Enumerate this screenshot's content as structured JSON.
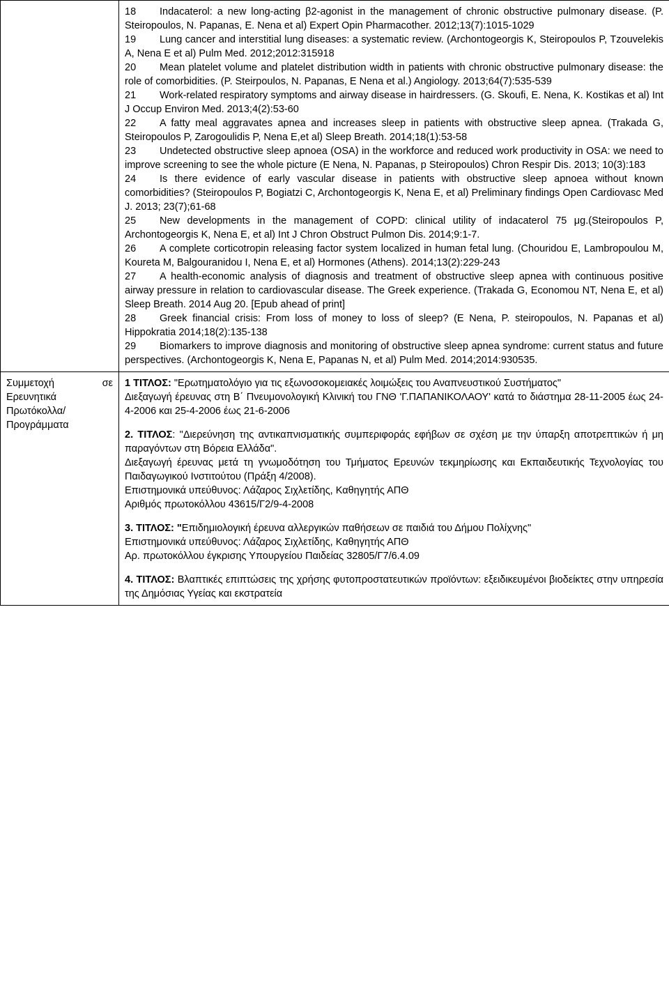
{
  "row1": {
    "left": "",
    "refs": [
      {
        "n": "18",
        "text": "Indacaterol: a new long-acting β2-agonist in the management of chronic obstructive pulmonary disease. (P. Steiropoulos, N. Papanas, E. Nena et al) Expert Opin Pharmacother. 2012;13(7):1015-1029"
      },
      {
        "n": "19",
        "text": "Lung cancer and interstitial lung diseases: a systematic review. (Archontogeorgis K, Steiropoulos P, Tzouvelekis A, Nena E et al) Pulm Med. 2012;2012:315918"
      },
      {
        "n": "20",
        "text": "Mean platelet volume and platelet distribution width in patients with chronic obstructive pulmonary disease: the role of comorbidities. (P. Steirpoulos, N. Papanas, E Nena et al.) Angiology. 2013;64(7):535-539"
      },
      {
        "n": "21",
        "text": "Work-related respiratory symptoms and airway disease in hairdressers. (G. Skoufi, E. Nena, K. Kostikas et al) Int J Occup Environ Med. 2013;4(2):53-60"
      },
      {
        "n": "22",
        "text": "A fatty meal aggravates apnea and increases sleep in patients with obstructive sleep apnea. (Trakada G, Steiropoulos P, Zarogoulidis P, Nena E,et al) Sleep Breath. 2014;18(1):53-58"
      },
      {
        "n": "23",
        "text": "Undetected obstructive sleep apnoea (OSA) in the workforce and reduced work productivity in OSA: we need to improve screening to see the whole picture (E Nena, N. Papanas, p Steiropoulos) Chron Respir Dis. 2013; 10(3):183"
      },
      {
        "n": "24",
        "text": "Is there evidence of early vascular disease in patients with obstructive sleep apnoea without known comorbidities? (Steiropoulos P, Bogiatzi C, Archontogeorgis K, Nena E, et al) Preliminary findings Open Cardiovasc Med J. 2013; 23(7);61-68"
      },
      {
        "n": "25",
        "text": "New developments in the management of COPD: clinical utility of indacaterol 75 μg.(Steiropoulos P, Archontogeorgis K, Nena E, et al)  Int J Chron Obstruct Pulmon Dis. 2014;9:1-7."
      },
      {
        "n": "26",
        "text": "A complete corticotropin releasing factor system localized in human fetal lung. (Chouridou E, Lambropoulou M, Koureta M, Balgouranidou I, Nena E, et al) Hormones (Athens). 2014;13(2):229-243"
      },
      {
        "n": "27",
        "text": "A health-economic analysis of diagnosis and treatment of obstructive sleep apnea with continuous positive airway pressure in relation to cardiovascular disease. The Greek experience. (Trakada G, Economou NT, Nena E, et al) Sleep Breath. 2014 Aug 20. [Epub ahead of print]"
      },
      {
        "n": "28",
        "text": "Greek financial crisis: From loss of money to loss of sleep? (E Nena, P. steiropoulos, N. Papanas et al) Hippokratia 2014;18(2):135-138"
      },
      {
        "n": "29",
        "text": "Biomarkers to improve diagnosis and monitoring of obstructive sleep apnea syndrome: current status and future perspectives. (Archontogeorgis K, Nena E, Papanas N, et al) Pulm Med. 2014;2014:930535."
      }
    ]
  },
  "row2": {
    "left_l1": "Συμμετοχή",
    "left_l1b": "σε",
    "left_l2": "Ερευνητικά",
    "left_l3": "Πρωτόκολλα/",
    "left_l4": "Προγράμματα",
    "sections": [
      {
        "title_prefix": "1 ΤΙΤΛΟΣ:",
        "title_rest": " \"Ερωτηματολόγιο για τις εξωνοσοκομειακές λοιμώξεις του Αναπνευστικού Συστήματος\"",
        "lines": [
          "Διεξαγωγή έρευνας στη Β΄ Πνευμονολογική Κλινική του ΓΝΘ 'Γ.ΠΑΠΑΝΙΚΟΛΑΟΥ' κατά το διάστημα 28-11-2005 έως 24-4-2006 και 25-4-2006 έως 21-6-2006"
        ]
      },
      {
        "title_prefix": "2. ΤΙΤΛΟΣ",
        "title_rest": ": \"Διερεύνηση της αντικαπνισματικής συμπεριφοράς εφήβων σε σχέση με την ύπαρξη αποτρεπτικών ή μη παραγόντων στη Βόρεια Ελλάδα\".",
        "lines": [
          "Διεξαγωγή έρευνας μετά τη γνωμοδότηση του Τμήματος Ερευνών τεκμηρίωσης και Εκπαιδευτικής Τεχνολογίας του Παιδαγωγικού Ινστιτούτου (Πράξη 4/2008).",
          "Επιστημονικά υπεύθυνος: Λάζαρος Σιχλετίδης, Καθηγητής ΑΠΘ",
          "Αριθμός πρωτοκόλλου 43615/Γ2/9-4-2008"
        ]
      },
      {
        "title_prefix": "3. ΤΙΤΛΟΣ: \"",
        "title_rest": "Επιδημιολογική έρευνα αλλεργικών παθήσεων σε παιδιά του Δήμου Πολίχνης\"",
        "lines": [
          "Επιστημονικά υπεύθυνος: Λάζαρος Σιχλετίδης, Καθηγητής ΑΠΘ",
          "Αρ. πρωτοκόλλου έγκρισης Υπουργείου Παιδείας 32805/Γ7/6.4.09"
        ]
      },
      {
        "title_prefix": "4. ΤΙΤΛΟΣ:",
        "title_rest": " Βλαπτικές επιπτώσεις της χρήσης φυτοπροστατευτικών προϊόντων: εξειδικευμένοι βιοδείκτες στην υπηρεσία της Δημόσιας Υγείας και εκστρατεία",
        "lines": []
      }
    ]
  }
}
